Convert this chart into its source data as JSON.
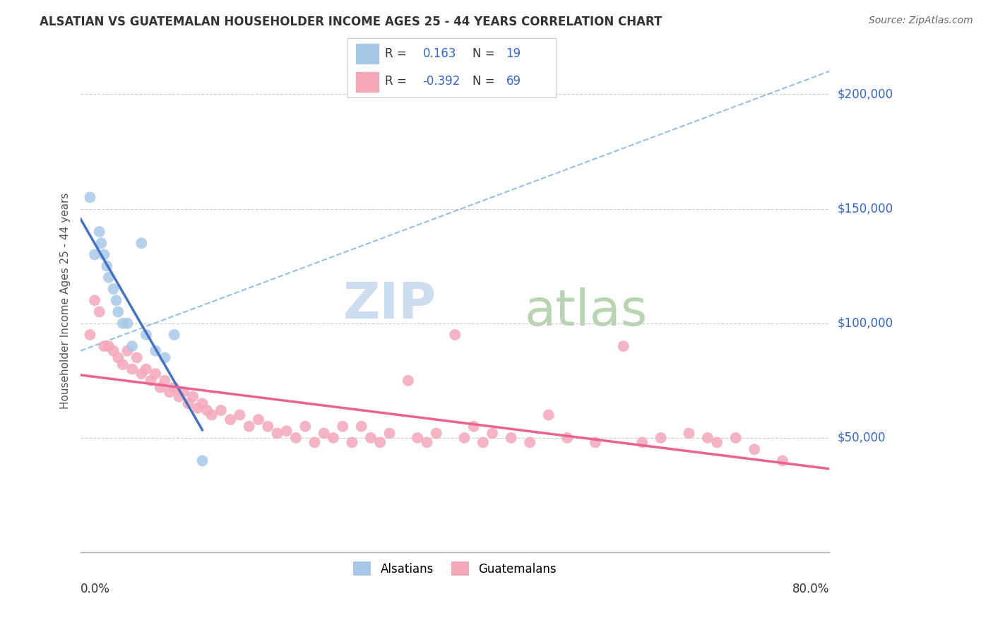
{
  "title": "ALSATIAN VS GUATEMALAN HOUSEHOLDER INCOME AGES 25 - 44 YEARS CORRELATION CHART",
  "source": "Source: ZipAtlas.com",
  "ylabel": "Householder Income Ages 25 - 44 years",
  "xlim": [
    0,
    80
  ],
  "ylim": [
    0,
    220000
  ],
  "ytick_values": [
    50000,
    100000,
    150000,
    200000
  ],
  "ytick_labels": [
    "$50,000",
    "$100,000",
    "$150,000",
    "$200,000"
  ],
  "alsatian_R": 0.163,
  "alsatian_N": 19,
  "guatemalan_R": -0.392,
  "guatemalan_N": 69,
  "alsatian_color": "#a8c8e8",
  "alsatian_line_color": "#4472c4",
  "guatemalan_color": "#f4a7b9",
  "guatemalan_line_color": "#e8648c",
  "dashed_line_color": "#7ab0e0",
  "background_color": "#ffffff",
  "als_x": [
    1.0,
    1.5,
    2.0,
    2.2,
    2.5,
    2.8,
    3.0,
    3.5,
    3.8,
    4.0,
    4.5,
    5.0,
    5.5,
    6.5,
    7.0,
    8.0,
    9.0,
    10.0,
    13.0
  ],
  "als_y": [
    155000,
    130000,
    140000,
    135000,
    130000,
    125000,
    120000,
    115000,
    110000,
    105000,
    100000,
    100000,
    90000,
    135000,
    95000,
    88000,
    85000,
    95000,
    40000
  ],
  "guat_x": [
    1.0,
    1.5,
    2.0,
    2.5,
    3.0,
    3.5,
    4.0,
    4.5,
    5.0,
    5.5,
    6.0,
    6.5,
    7.0,
    7.5,
    8.0,
    8.5,
    9.0,
    9.5,
    10.0,
    10.5,
    11.0,
    11.5,
    12.0,
    12.5,
    13.0,
    13.5,
    14.0,
    15.0,
    16.0,
    17.0,
    18.0,
    19.0,
    20.0,
    21.0,
    22.0,
    23.0,
    24.0,
    25.0,
    26.0,
    27.0,
    28.0,
    29.0,
    30.0,
    31.0,
    32.0,
    33.0,
    35.0,
    36.0,
    37.0,
    38.0,
    40.0,
    41.0,
    42.0,
    43.0,
    44.0,
    46.0,
    48.0,
    50.0,
    52.0,
    55.0,
    58.0,
    60.0,
    62.0,
    65.0,
    67.0,
    68.0,
    70.0,
    72.0,
    75.0
  ],
  "guat_y": [
    95000,
    110000,
    105000,
    90000,
    90000,
    88000,
    85000,
    82000,
    88000,
    80000,
    85000,
    78000,
    80000,
    75000,
    78000,
    72000,
    75000,
    70000,
    72000,
    68000,
    70000,
    65000,
    68000,
    63000,
    65000,
    62000,
    60000,
    62000,
    58000,
    60000,
    55000,
    58000,
    55000,
    52000,
    53000,
    50000,
    55000,
    48000,
    52000,
    50000,
    55000,
    48000,
    55000,
    50000,
    48000,
    52000,
    75000,
    50000,
    48000,
    52000,
    95000,
    50000,
    55000,
    48000,
    52000,
    50000,
    48000,
    60000,
    50000,
    48000,
    90000,
    48000,
    50000,
    52000,
    50000,
    48000,
    50000,
    45000,
    40000
  ]
}
